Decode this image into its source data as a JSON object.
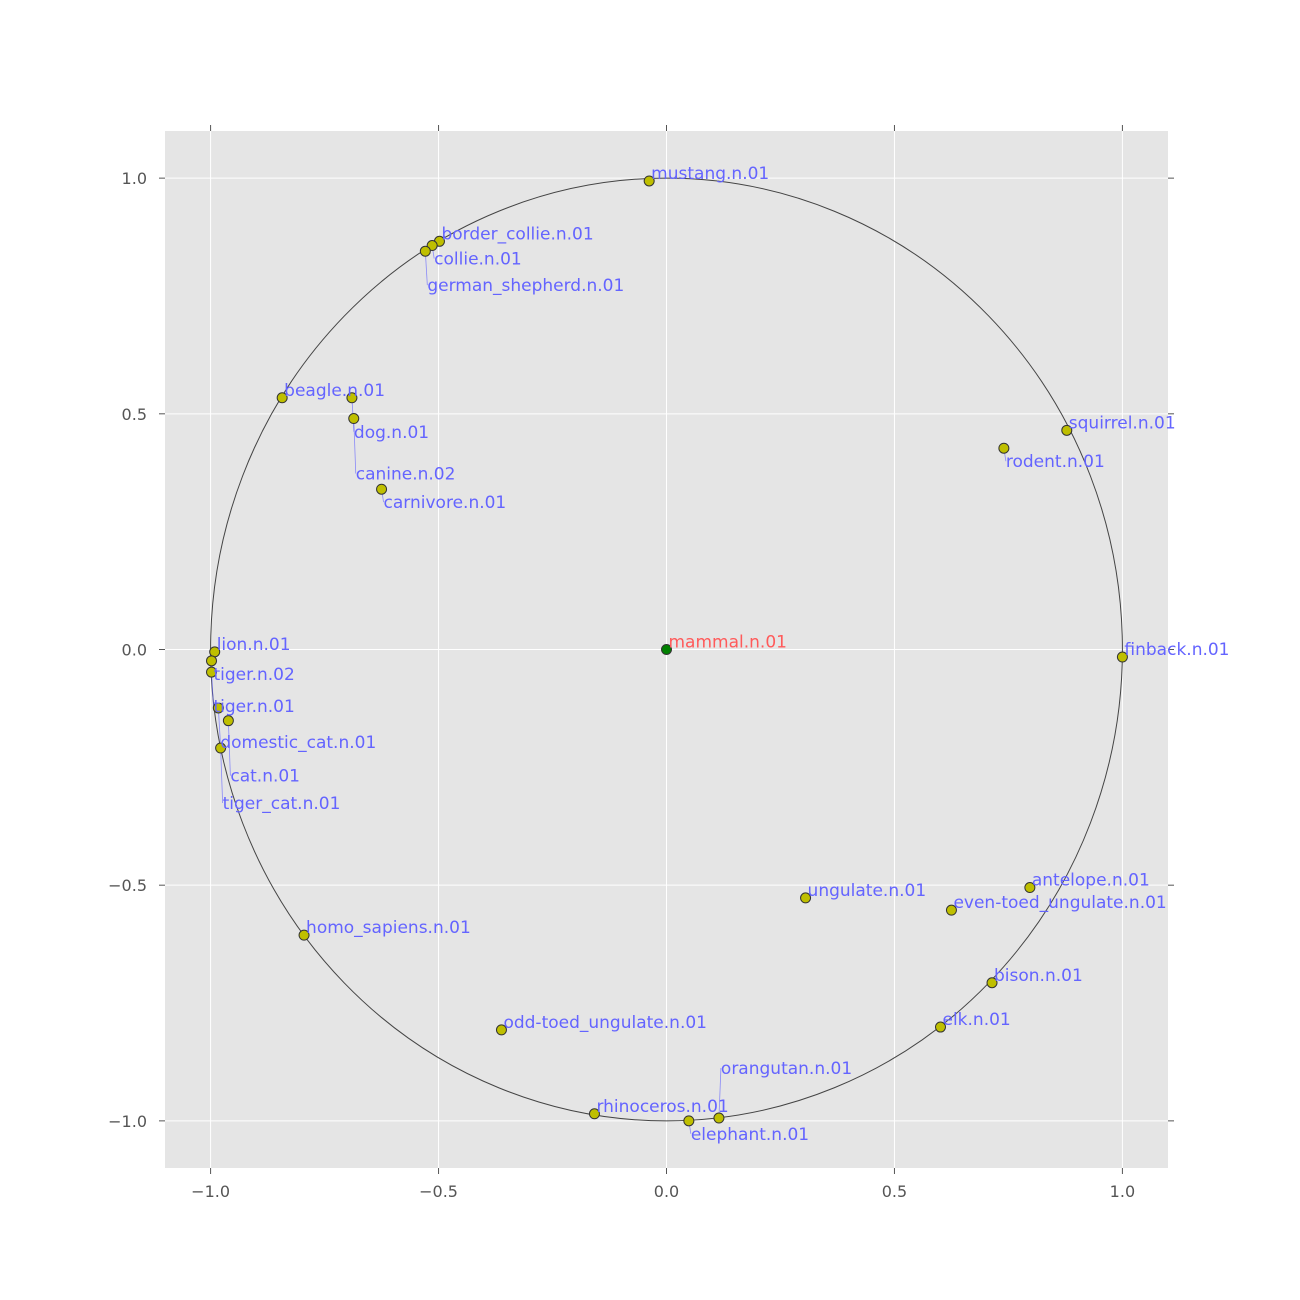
{
  "chart_data": {
    "type": "scatter",
    "title": "",
    "xlabel": "",
    "ylabel": "",
    "xlim": [
      -1.1,
      1.1
    ],
    "ylim": [
      -1.1,
      1.1
    ],
    "xticks": [
      -1.0,
      -0.5,
      0.0,
      0.5,
      1.0
    ],
    "yticks": [
      -1.0,
      -0.5,
      0.0,
      0.5,
      1.0
    ],
    "xtick_labels": [
      "−1.0",
      "−0.5",
      "0.0",
      "0.5",
      "1.0"
    ],
    "ytick_labels": [
      "−1.0",
      "−0.5",
      "0.0",
      "0.5",
      "1.0"
    ],
    "grid": true,
    "unit_circle": true,
    "colors": {
      "background": "#e5e5e5",
      "grid": "#ffffff",
      "circle": "#444444",
      "marker": "#bfbf00",
      "marker_edge": "#333333",
      "root_marker": "#008000",
      "label": "#6464ff",
      "root_label": "#ff5a5a"
    },
    "points": [
      {
        "label": "mustang.n.01",
        "x": -0.038,
        "y": 0.994
      },
      {
        "label": "border_collie.n.01",
        "x": -0.498,
        "y": 0.866
      },
      {
        "label": "collie.n.01",
        "x": -0.514,
        "y": 0.857
      },
      {
        "label": "german_shepherd.n.01",
        "x": -0.529,
        "y": 0.845
      },
      {
        "label": "beagle.n.01",
        "x": -0.843,
        "y": 0.534
      },
      {
        "label": "dog.n.01",
        "x": -0.69,
        "y": 0.534
      },
      {
        "label": "canine.n.02",
        "x": -0.686,
        "y": 0.49
      },
      {
        "label": "carnivore.n.01",
        "x": -0.625,
        "y": 0.34
      },
      {
        "label": "squirrel.n.01",
        "x": 0.878,
        "y": 0.465
      },
      {
        "label": "rodent.n.01",
        "x": 0.74,
        "y": 0.427
      },
      {
        "label": "mammal.n.01",
        "x": 0.0,
        "y": 0.0,
        "root": true
      },
      {
        "label": "finback.n.01",
        "x": 1.0,
        "y": -0.016
      },
      {
        "label": "lion.n.01",
        "x": -0.991,
        "y": -0.005
      },
      {
        "label": "tiger.n.02",
        "x": -0.998,
        "y": -0.024
      },
      {
        "label": "tiger.n.01",
        "x": -0.998,
        "y": -0.048
      },
      {
        "label": "domestic_cat.n.01",
        "x": -0.983,
        "y": -0.124
      },
      {
        "label": "cat.n.01",
        "x": -0.961,
        "y": -0.151
      },
      {
        "label": "tiger_cat.n.01",
        "x": -0.978,
        "y": -0.209
      },
      {
        "label": "homo_sapiens.n.01",
        "x": -0.795,
        "y": -0.606
      },
      {
        "label": "ungulate.n.01",
        "x": 0.305,
        "y": -0.527
      },
      {
        "label": "antelope.n.01",
        "x": 0.797,
        "y": -0.505
      },
      {
        "label": "even-toed_ungulate.n.01",
        "x": 0.625,
        "y": -0.553
      },
      {
        "label": "bison.n.01",
        "x": 0.714,
        "y": -0.707
      },
      {
        "label": "elk.n.01",
        "x": 0.601,
        "y": -0.801
      },
      {
        "label": "odd-toed_ungulate.n.01",
        "x": -0.362,
        "y": -0.807
      },
      {
        "label": "rhinoceros.n.01",
        "x": -0.158,
        "y": -0.985
      },
      {
        "label": "elephant.n.01",
        "x": 0.049,
        "y": -1.0
      },
      {
        "label": "orangutan.n.01",
        "x": 0.115,
        "y": -0.994
      }
    ]
  }
}
